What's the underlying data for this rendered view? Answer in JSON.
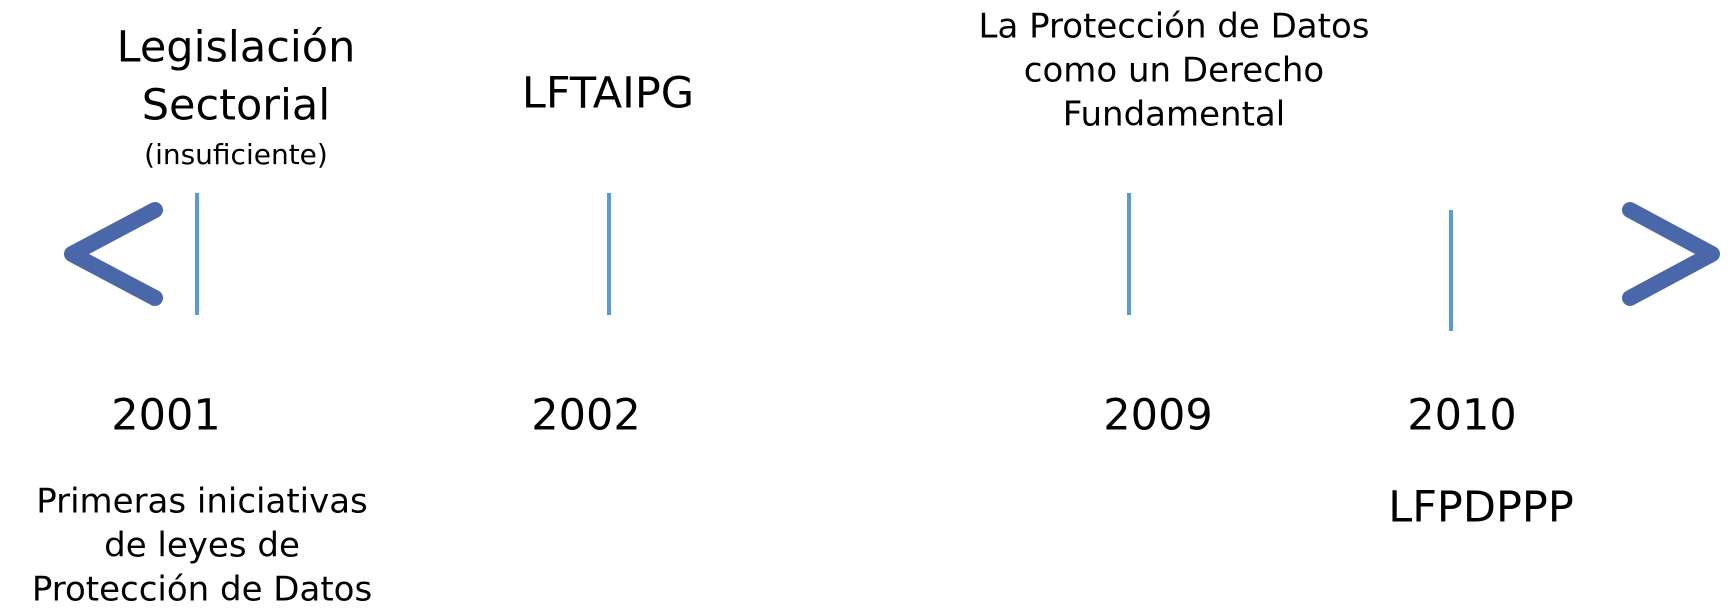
{
  "events": [
    {
      "year": "2001",
      "above": [
        "Legislación",
        "Sectorial"
      ],
      "note": "(insuficiente)",
      "below": [
        "Primeras iniciativas",
        "de leyes de",
        "Protección de Datos"
      ]
    },
    {
      "year": "2002",
      "above": [
        "LFTAIPG"
      ]
    },
    {
      "year": "2009",
      "above": [
        "La Protección de Datos",
        "como un Derecho",
        "Fundamental"
      ]
    },
    {
      "year": "2010",
      "below": [
        "LFPDPPP"
      ]
    }
  ]
}
